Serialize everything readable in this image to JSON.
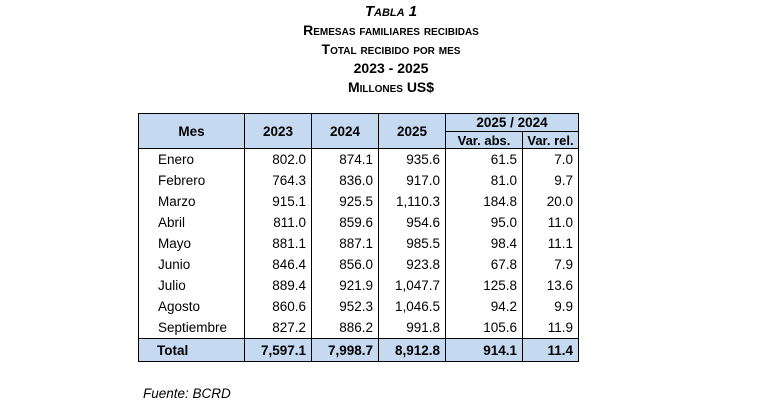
{
  "title": {
    "line1": "Tabla 1",
    "line2": "Remesas familiares recibidas",
    "line3": "Total recibido por mes",
    "line4": "2023 - 2025",
    "line5": "Millones US$"
  },
  "table": {
    "headers": {
      "mes": "Mes",
      "y2023": "2023",
      "y2024": "2024",
      "y2025": "2025",
      "comparison": "2025 / 2024",
      "var_abs": "Var. abs.",
      "var_rel": "Var. rel."
    },
    "rows": [
      [
        "Enero",
        "802.0",
        "874.1",
        "935.6",
        "61.5",
        "7.0"
      ],
      [
        "Febrero",
        "764.3",
        "836.0",
        "917.0",
        "81.0",
        "9.7"
      ],
      [
        "Marzo",
        "915.1",
        "925.5",
        "1,110.3",
        "184.8",
        "20.0"
      ],
      [
        "Abril",
        "811.0",
        "859.6",
        "954.6",
        "95.0",
        "11.0"
      ],
      [
        "Mayo",
        "881.1",
        "887.1",
        "985.5",
        "98.4",
        "11.1"
      ],
      [
        "Junio",
        "846.4",
        "856.0",
        "923.8",
        "67.8",
        "7.9"
      ],
      [
        "Julio",
        "889.4",
        "921.9",
        "1,047.7",
        "125.8",
        "13.6"
      ],
      [
        "Agosto",
        "860.6",
        "952.3",
        "1,046.5",
        "94.2",
        "9.9"
      ],
      [
        "Septiembre",
        "827.2",
        "886.2",
        "991.8",
        "105.6",
        "11.9"
      ]
    ],
    "total": [
      "Total",
      "7,597.1",
      "7,998.7",
      "8,912.8",
      "914.1",
      "11.4"
    ]
  },
  "source": "Fuente: BCRD"
}
